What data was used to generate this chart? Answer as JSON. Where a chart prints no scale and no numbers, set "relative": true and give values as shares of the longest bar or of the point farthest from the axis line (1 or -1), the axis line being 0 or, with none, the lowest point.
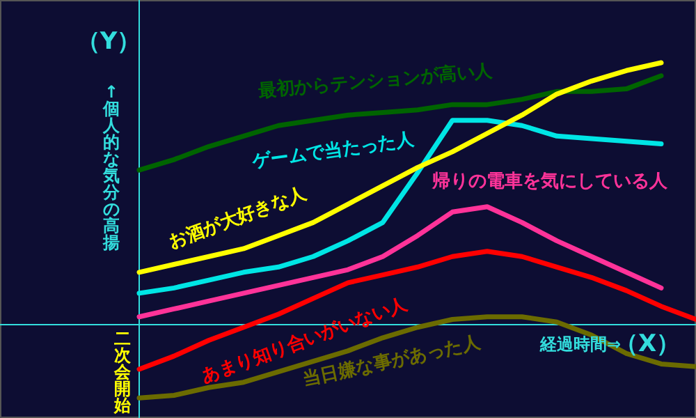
{
  "chart_data": {
    "type": "line",
    "relative": true,
    "ylabel": "↑個人的な気分の高揚",
    "xlabel": "経過時間⇒",
    "annotations": [
      "（Y）",
      "（X）",
      "二次会開始"
    ],
    "ref_lines": [
      {
        "axis": "y",
        "value": 0,
        "color": "#33dddd"
      }
    ],
    "categories": [
      null,
      null,
      null,
      null,
      null,
      null,
      null,
      null,
      null,
      null,
      null,
      null,
      null,
      null,
      null,
      null,
      null
    ],
    "series": [
      {
        "name": "最初からテンションが高い人",
        "color": "#006400",
        "values": [
          0.59,
          0.63,
          0.68,
          0.72,
          0.76,
          0.78,
          0.8,
          0.81,
          0.82,
          0.84,
          0.84,
          0.86,
          0.89,
          0.89,
          0.9,
          0.95,
          null
        ]
      },
      {
        "name": "ゲームで当たった人",
        "color": "#00e5e5",
        "values": [
          0.12,
          0.14,
          0.17,
          0.2,
          0.22,
          0.26,
          0.32,
          0.39,
          0.58,
          0.78,
          0.78,
          0.76,
          0.72,
          0.71,
          0.7,
          0.69,
          null
        ]
      },
      {
        "name": "お酒が大好きな人",
        "color": "#ffff00",
        "values": [
          0.2,
          0.23,
          0.26,
          0.29,
          0.34,
          0.39,
          0.46,
          0.53,
          0.6,
          0.66,
          0.73,
          0.8,
          0.88,
          0.93,
          0.97,
          1.0,
          null
        ]
      },
      {
        "name": "帰りの電車を気にしている人",
        "color": "#ff3399",
        "values": [
          0.03,
          0.06,
          0.09,
          0.12,
          0.15,
          0.18,
          0.21,
          0.26,
          0.34,
          0.43,
          0.45,
          0.39,
          0.32,
          0.26,
          0.2,
          0.14,
          null
        ]
      },
      {
        "name": "あまり知り合いがいない人",
        "color": "#ff0000",
        "values": [
          -0.17,
          -0.12,
          -0.06,
          -0.01,
          0.04,
          0.1,
          0.16,
          0.19,
          0.22,
          0.26,
          0.28,
          0.26,
          0.22,
          0.18,
          0.13,
          0.07,
          0.02
        ]
      },
      {
        "name": "当日嫌な事があった人",
        "color": "#6b6b00",
        "values": [
          -0.28,
          -0.27,
          -0.24,
          -0.22,
          -0.18,
          -0.14,
          -0.1,
          -0.05,
          -0.01,
          0.02,
          0.03,
          0.03,
          0.01,
          -0.04,
          -0.11,
          -0.15,
          -0.16
        ]
      }
    ]
  }
}
